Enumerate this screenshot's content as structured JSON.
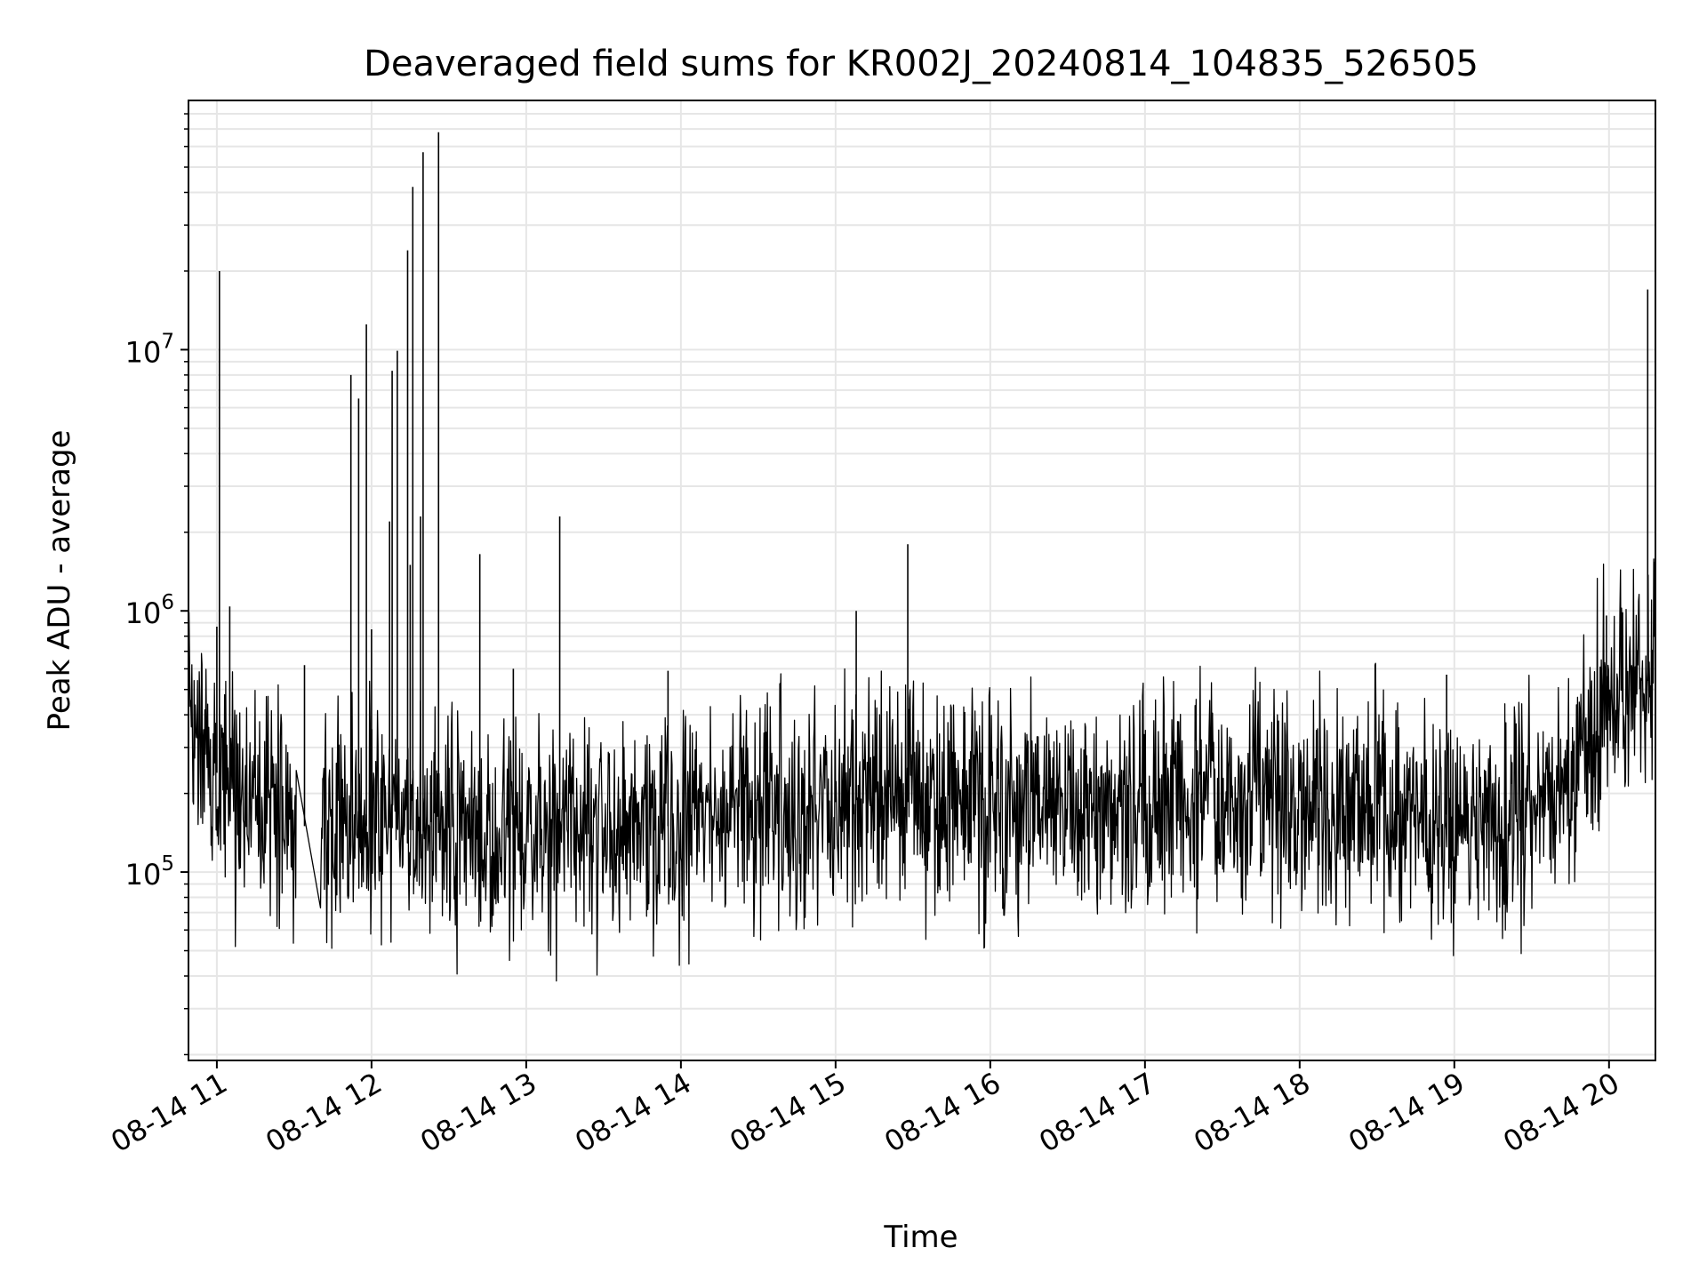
{
  "chart_data": {
    "type": "line",
    "title": "Deaveraged field sums for KR002J_20240814_104835_526505",
    "xlabel": "Time",
    "ylabel": "Peak ADU - average",
    "y_scale": "log",
    "grid": true,
    "line_color": "#000000",
    "grid_color": "#e6e6e6",
    "x_range": [
      "08-14 10:49",
      "08-14 20:18"
    ],
    "ylim": [
      19000,
      90000000
    ],
    "x_ticks": [
      "08-14 11",
      "08-14 12",
      "08-14 13",
      "08-14 14",
      "08-14 15",
      "08-14 16",
      "08-14 17",
      "08-14 18",
      "08-14 19",
      "08-14 20"
    ],
    "y_ticks": [
      {
        "base": "10",
        "exponent": "5",
        "value": 100000
      },
      {
        "base": "10",
        "exponent": "6",
        "value": 1000000
      },
      {
        "base": "10",
        "exponent": "7",
        "value": 10000000
      }
    ],
    "series": [
      {
        "baseline": [
          [
            "08-14 10:49",
            300000
          ],
          [
            "08-14 11:00",
            240000
          ],
          [
            "08-14 11:30",
            150000
          ],
          [
            "08-14 12:00",
            150000
          ],
          [
            "08-14 12:30",
            140000
          ],
          [
            "08-14 13:00",
            140000
          ],
          [
            "08-14 13:30",
            150000
          ],
          [
            "08-14 14:00",
            150000
          ],
          [
            "08-14 14:30",
            170000
          ],
          [
            "08-14 15:00",
            190000
          ],
          [
            "08-14 15:30",
            185000
          ],
          [
            "08-14 16:00",
            175000
          ],
          [
            "08-14 16:30",
            185000
          ],
          [
            "08-14 17:00",
            195000
          ],
          [
            "08-14 17:30",
            190000
          ],
          [
            "08-14 18:00",
            185000
          ],
          [
            "08-14 18:30",
            175000
          ],
          [
            "08-14 19:00",
            165000
          ],
          [
            "08-14 19:30",
            170000
          ],
          [
            "08-14 19:45",
            210000
          ],
          [
            "08-14 19:55",
            420000
          ],
          [
            "08-14 20:18",
            560000
          ]
        ],
        "spikes": [
          [
            "08-14 11:00",
            870000
          ],
          [
            "08-14 11:01",
            20000000
          ],
          [
            "08-14 11:05",
            1040000
          ],
          [
            "08-14 11:34",
            620000
          ],
          [
            "08-14 11:52",
            8000000
          ],
          [
            "08-14 11:55",
            6500000
          ],
          [
            "08-14 11:58",
            12500000
          ],
          [
            "08-14 12:00",
            850000
          ],
          [
            "08-14 12:07",
            2200000
          ],
          [
            "08-14 12:08",
            8300000
          ],
          [
            "08-14 12:10",
            9900000
          ],
          [
            "08-14 12:14",
            24000000
          ],
          [
            "08-14 12:15",
            1500000
          ],
          [
            "08-14 12:16",
            42000000
          ],
          [
            "08-14 12:19",
            2300000
          ],
          [
            "08-14 12:20",
            57000000
          ],
          [
            "08-14 12:26",
            68000000
          ],
          [
            "08-14 12:42",
            1650000
          ],
          [
            "08-14 12:55",
            600000
          ],
          [
            "08-14 13:13",
            2300000
          ],
          [
            "08-14 13:55",
            590000
          ],
          [
            "08-14 15:08",
            1000000
          ],
          [
            "08-14 15:28",
            1800000
          ],
          [
            "08-14 18:57",
            570000
          ],
          [
            "08-14 19:59",
            960000
          ],
          [
            "08-14 20:15",
            17000000
          ]
        ]
      }
    ]
  }
}
